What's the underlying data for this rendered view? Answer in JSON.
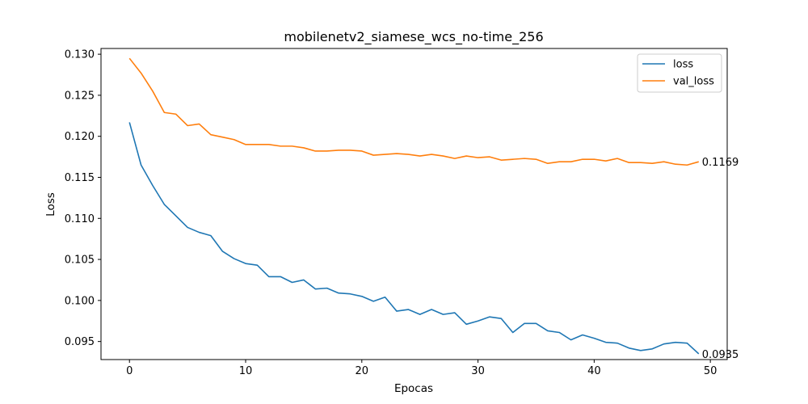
{
  "chart_data": {
    "type": "line",
    "title": "mobilenetv2_siamese_wcs_no-time_256",
    "xlabel": "Epocas",
    "ylabel": "Loss",
    "xlim": [
      -2.45,
      51.45
    ],
    "ylim": [
      0.0928,
      0.1307
    ],
    "xticks": [
      0,
      10,
      20,
      30,
      40,
      50
    ],
    "yticks": [
      0.095,
      0.1,
      0.105,
      0.11,
      0.115,
      0.12,
      0.125,
      0.13
    ],
    "ytick_labels": [
      "0.095",
      "0.100",
      "0.105",
      "0.110",
      "0.115",
      "0.120",
      "0.125",
      "0.130"
    ],
    "grid": false,
    "legend_position": "top-right",
    "x": [
      0,
      1,
      2,
      3,
      4,
      5,
      6,
      7,
      8,
      9,
      10,
      11,
      12,
      13,
      14,
      15,
      16,
      17,
      18,
      19,
      20,
      21,
      22,
      23,
      24,
      25,
      26,
      27,
      28,
      29,
      30,
      31,
      32,
      33,
      34,
      35,
      36,
      37,
      38,
      39,
      40,
      41,
      42,
      43,
      44,
      45,
      46,
      47,
      48,
      49
    ],
    "series": [
      {
        "name": "loss",
        "color": "#1f77b4",
        "end_label": "0.0935",
        "values": [
          0.1217,
          0.1165,
          0.114,
          0.1117,
          0.1103,
          0.1089,
          0.1083,
          0.1079,
          0.106,
          0.1051,
          0.1045,
          0.1043,
          0.1029,
          0.1029,
          0.1022,
          0.1025,
          0.1014,
          0.1015,
          0.1009,
          0.1008,
          0.1005,
          0.0999,
          0.1004,
          0.0987,
          0.0989,
          0.0983,
          0.0989,
          0.0983,
          0.0985,
          0.0971,
          0.0975,
          0.098,
          0.0978,
          0.0961,
          0.0972,
          0.0972,
          0.0963,
          0.0961,
          0.0952,
          0.0958,
          0.0954,
          0.0949,
          0.0948,
          0.0942,
          0.0939,
          0.0941,
          0.0947,
          0.0949,
          0.0948,
          0.0935
        ]
      },
      {
        "name": "val_loss",
        "color": "#ff7f0e",
        "end_label": "0.1169",
        "values": [
          0.1295,
          0.1277,
          0.1255,
          0.1229,
          0.1227,
          0.1213,
          0.1215,
          0.1202,
          0.1199,
          0.1196,
          0.119,
          0.119,
          0.119,
          0.1188,
          0.1188,
          0.1186,
          0.1182,
          0.1182,
          0.1183,
          0.1183,
          0.1182,
          0.1177,
          0.1178,
          0.1179,
          0.1178,
          0.1176,
          0.1178,
          0.1176,
          0.1173,
          0.1176,
          0.1174,
          0.1175,
          0.1171,
          0.1172,
          0.1173,
          0.1172,
          0.1167,
          0.1169,
          0.1169,
          0.1172,
          0.1172,
          0.117,
          0.1173,
          0.1168,
          0.1168,
          0.1167,
          0.1169,
          0.1166,
          0.1165,
          0.1169
        ]
      }
    ]
  }
}
